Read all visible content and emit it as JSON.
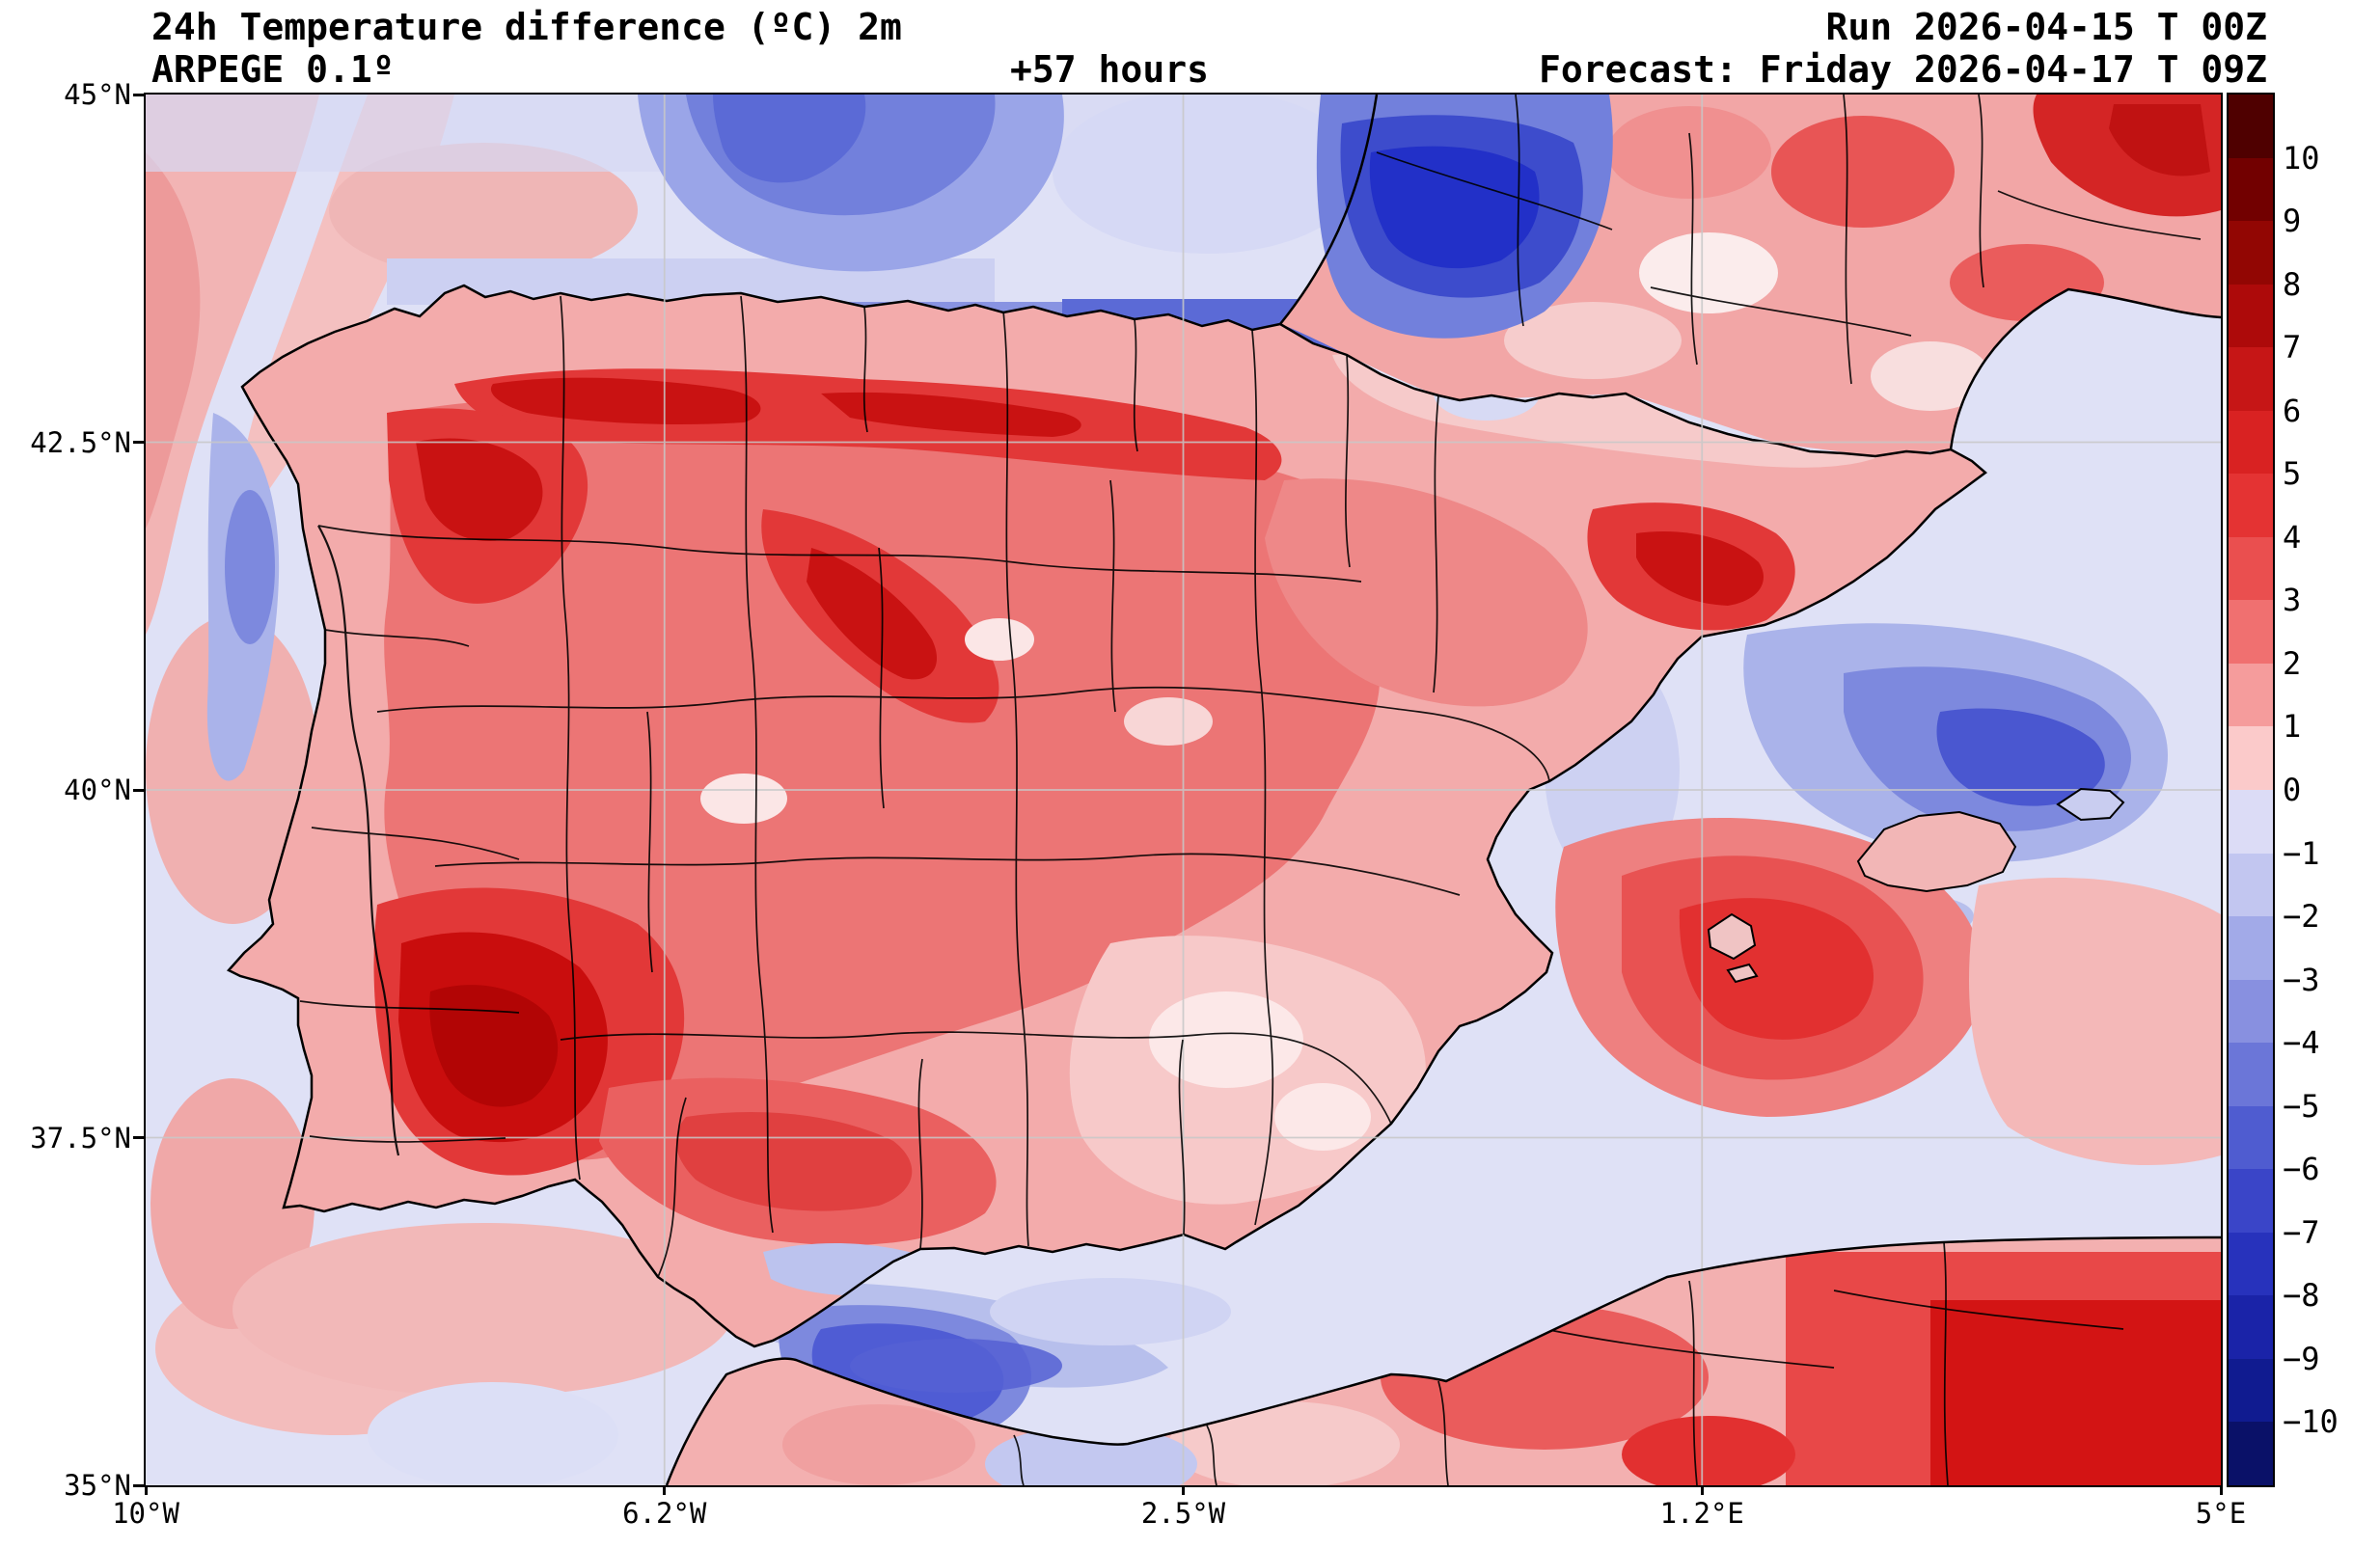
{
  "header": {
    "title": "24h Temperature difference (ºC) 2m",
    "model": "ARPEGE 0.1º",
    "lead": "+57 hours",
    "run": "Run 2026-04-15 T 00Z",
    "forecast": "Forecast: Friday 2026-04-17 T 09Z"
  },
  "axes": {
    "y_ticks": [
      "45°N",
      "42.5°N",
      "40°N",
      "37.5°N",
      "35°N"
    ],
    "x_ticks": [
      "10°W",
      "6.2°W",
      "2.5°W",
      "1.2°E",
      "5°E"
    ]
  },
  "colorbar": {
    "labels": [
      "10",
      "9",
      "8",
      "7",
      "6",
      "5",
      "4",
      "3",
      "2",
      "1",
      "0",
      "−1",
      "−2",
      "−3",
      "−4",
      "−5",
      "−6",
      "−7",
      "−8",
      "−9",
      "−10"
    ],
    "colors": [
      "#4f0000",
      "#720000",
      "#920603",
      "#ad0a0a",
      "#c61616",
      "#d92222",
      "#e43333",
      "#ea4f4f",
      "#f07070",
      "#f59c9c",
      "#fbcaca",
      "#dcdcf6",
      "#c2c6f0",
      "#a2aae8",
      "#8890e0",
      "#6b76d8",
      "#4f5cd0",
      "#3a45c8",
      "#2732bc",
      "#1a23a8",
      "#101b90",
      "#0a1168"
    ]
  },
  "chart_data": {
    "type": "heatmap",
    "subtype": "filled-contour-geographic-map",
    "title": "24h Temperature difference (ºC) 2m",
    "model": "ARPEGE 0.1º",
    "run": "2026-04-15 00Z",
    "forecast_valid": "Friday 2026-04-17 09Z",
    "lead_hours": 57,
    "unit": "ºC",
    "extent": {
      "lon_min": -10,
      "lon_max": 5,
      "lat_min": 35,
      "lat_max": 45
    },
    "x_tick_values_deg": [
      -10,
      -6.25,
      -2.5,
      1.25,
      5
    ],
    "y_tick_values_deg": [
      45,
      42.5,
      40,
      37.5,
      35
    ],
    "grid": true,
    "legend_position": "right-colorbar",
    "colorbar_levels": [
      -10,
      -9,
      -8,
      -7,
      -6,
      -5,
      -4,
      -3,
      -2,
      -1,
      0,
      1,
      2,
      3,
      4,
      5,
      6,
      7,
      8,
      9,
      10
    ],
    "features": [
      {
        "region": "Northwest and central-west Iberia (Castilla y León, Extremadura, Alentejo)",
        "approx_value_c": "+4 to +7"
      },
      {
        "region": "Northern meseta band south of Cantabrian coast",
        "approx_value_c": "+4 to +6"
      },
      {
        "region": "Interior Catalonia",
        "approx_value_c": "+4 to +5"
      },
      {
        "region": "Bay of Biscay off Basque/SW France coast",
        "approx_value_c": "-4 to -7"
      },
      {
        "region": "Sea NE of Mallorca (Balearic Sea / Gulf of Lion)",
        "approx_value_c": "-3 to -5"
      },
      {
        "region": "Atlantic strip off Portugal west coast",
        "approx_value_c": "-1 to -3"
      },
      {
        "region": "Southeast Spain interior",
        "approx_value_c": "0 to +2"
      },
      {
        "region": "Alboran Sea / Strait of Gibraltar",
        "approx_value_c": "-1 to -5"
      },
      {
        "region": "Mediterranean south of Balearics",
        "approx_value_c": "+2 to +4"
      },
      {
        "region": "Southern France",
        "approx_value_c": "+1 to +5"
      },
      {
        "region": "Northeast Algeria / bottom-right corner",
        "approx_value_c": "+3 to +6"
      }
    ]
  }
}
